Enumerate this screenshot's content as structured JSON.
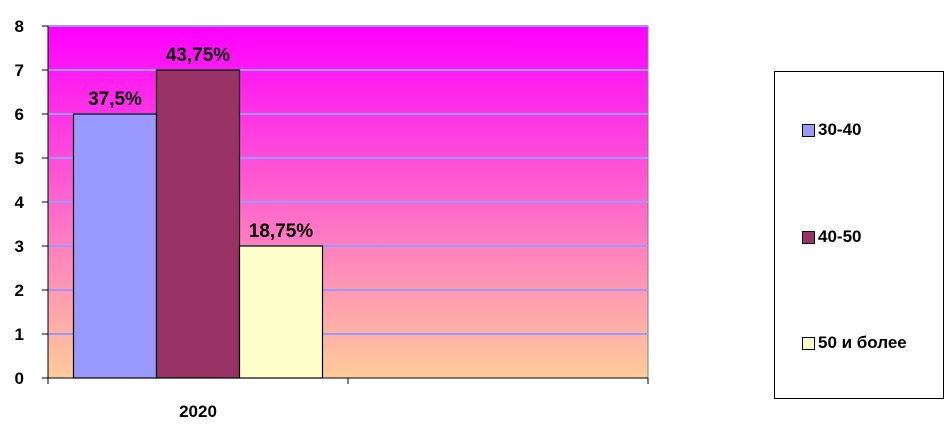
{
  "chart_data": {
    "type": "bar",
    "categories": [
      "2020"
    ],
    "series": [
      {
        "name": "30-40",
        "values": [
          6
        ],
        "label": "37,5%",
        "color": "#9999ff"
      },
      {
        "name": "40-50",
        "values": [
          7
        ],
        "label": "43,75%",
        "color": "#993366"
      },
      {
        "name": "50 и более",
        "values": [
          3
        ],
        "label": "18,75%",
        "color": "#ffffcc"
      }
    ],
    "ylim": [
      0,
      8
    ],
    "yticks": [
      "0",
      "1",
      "2",
      "3",
      "4",
      "5",
      "6",
      "7",
      "8"
    ],
    "grid": true,
    "legend_position": "right",
    "plot_background": {
      "top_color": "#ff00ff",
      "bottom_color": "#ffcc99"
    },
    "gridline_color": "#9999ff"
  }
}
